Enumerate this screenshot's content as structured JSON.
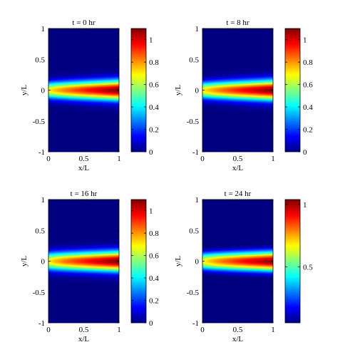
{
  "chart_data": [
    {
      "type": "heatmap",
      "title": "t = 0 hr",
      "xlabel": "x/L",
      "ylabel": "y/L",
      "xlim": [
        0,
        1
      ],
      "ylim": [
        -1,
        1
      ],
      "x_ticks": [
        "0",
        "0.5",
        "1"
      ],
      "y_ticks": [
        "1",
        "0.5",
        "0",
        "-0.5",
        "-1"
      ],
      "colorbar": {
        "range": [
          0,
          1.1
        ],
        "ticks": [
          "1",
          "0.8",
          "0.6",
          "0.4",
          "0.2",
          "0"
        ],
        "tick_values": [
          1,
          0.8,
          0.6,
          0.4,
          0.2,
          0
        ]
      },
      "field": {
        "peak": 1.1,
        "peak_x": 1.0,
        "rise": 0.35,
        "half_width_base": 0.13,
        "half_width_growth": 0.03
      }
    },
    {
      "type": "heatmap",
      "title": "t = 8 hr",
      "xlabel": "x/L",
      "ylabel": "y/L",
      "xlim": [
        0,
        1
      ],
      "ylim": [
        -1,
        1
      ],
      "x_ticks": [
        "0",
        "0.5",
        "1"
      ],
      "y_ticks": [
        "1",
        "0.5",
        "0",
        "-0.5",
        "-1"
      ],
      "colorbar": {
        "range": [
          0,
          1.1
        ],
        "ticks": [
          "1",
          "0.8",
          "0.6",
          "0.4",
          "0.2",
          "0"
        ],
        "tick_values": [
          1,
          0.8,
          0.6,
          0.4,
          0.2,
          0
        ]
      },
      "field": {
        "peak": 1.1,
        "peak_x": 1.0,
        "rise": 0.4,
        "half_width_base": 0.13,
        "half_width_growth": 0.03
      }
    },
    {
      "type": "heatmap",
      "title": "t = 16 hr",
      "xlabel": "x/L",
      "ylabel": "y/L",
      "xlim": [
        0,
        1
      ],
      "ylim": [
        -1,
        1
      ],
      "x_ticks": [
        "0",
        "0.5",
        "1"
      ],
      "y_ticks": [
        "1",
        "0.5",
        "0",
        "-0.5",
        "-1"
      ],
      "colorbar": {
        "range": [
          0,
          1.1
        ],
        "ticks": [
          "1",
          "0.8",
          "0.6",
          "0.4",
          "0.2",
          "0"
        ],
        "tick_values": [
          1,
          0.8,
          0.6,
          0.4,
          0.2,
          0
        ]
      },
      "field": {
        "peak": 1.1,
        "peak_x": 1.0,
        "rise": 0.45,
        "half_width_base": 0.14,
        "half_width_growth": 0.02
      }
    },
    {
      "type": "heatmap",
      "title": "t = 24 hr",
      "xlabel": "x/L",
      "ylabel": "y/L",
      "xlim": [
        0,
        1
      ],
      "ylim": [
        -1,
        1
      ],
      "x_ticks": [
        "0",
        "0.5",
        "1"
      ],
      "y_ticks": [
        "1",
        "0.5",
        "0",
        "-0.5",
        "-1"
      ],
      "colorbar": {
        "range": [
          0.05,
          1.04
        ],
        "ticks": [
          "1",
          "0.5"
        ],
        "tick_values": [
          1,
          0.5
        ]
      },
      "field": {
        "peak": 1.03,
        "peak_x": 1.0,
        "rise": 0.5,
        "half_width_base": 0.14,
        "half_width_growth": 0.02
      }
    }
  ]
}
